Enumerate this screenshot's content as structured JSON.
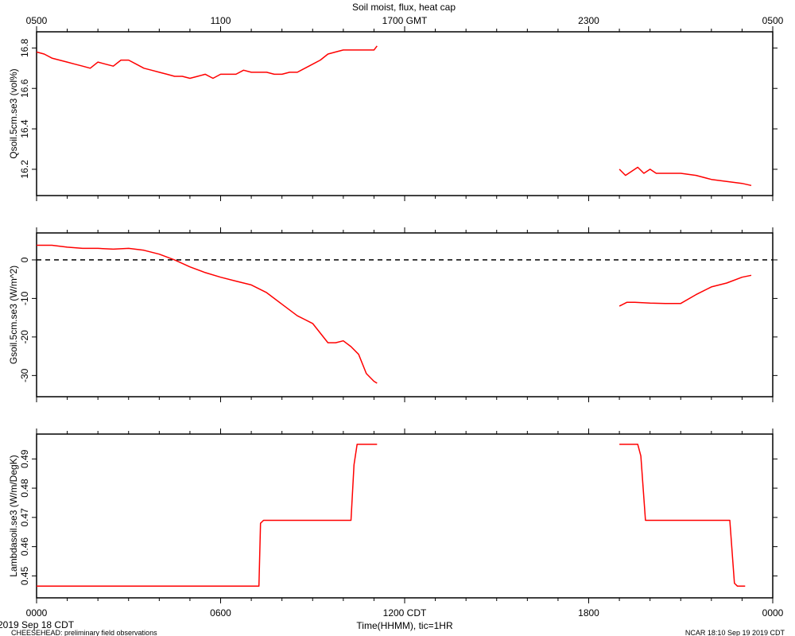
{
  "title": "Soil moist, flux, heat cap",
  "top_axis": {
    "tick_labels": [
      "0500",
      "1100",
      "1700 GMT",
      "2300",
      "0500"
    ],
    "tick_hours": [
      0,
      6,
      12,
      18,
      24
    ]
  },
  "bottom_axis": {
    "tick_labels": [
      "0000",
      "0600",
      "1200 CDT",
      "1800",
      "0000"
    ],
    "tick_hours": [
      0,
      6,
      12,
      18,
      24
    ],
    "label": "Time(HHMM), tic=1HR",
    "minor_tick_step_hours": 1
  },
  "date_label": "2019 Sep 18 CDT",
  "footer_left": "CHEESEHEAD: preliminary field observations",
  "footer_right": "NCAR 18:10 Sep 19 2019 CDT",
  "colors": {
    "series": "#ff0000",
    "axes": "#000000"
  },
  "chart_data": [
    {
      "type": "line",
      "ylabel": "Qsoil.5cm.se3 (vol%)",
      "ylim": [
        16.07,
        16.88
      ],
      "yticks": [
        16.2,
        16.4,
        16.6,
        16.8
      ],
      "ytick_labels": [
        "16.2",
        "16.4",
        "16.6",
        "16.8"
      ],
      "series": [
        {
          "segments": [
            {
              "x": [
                0,
                0.25,
                0.5,
                0.75,
                1.0,
                1.25,
                1.5,
                1.75,
                2.0,
                2.25,
                2.5,
                2.75,
                3.0,
                3.25,
                3.5,
                3.75,
                4.0,
                4.25,
                4.5,
                4.75,
                5.0,
                5.25,
                5.5,
                5.75,
                6.0,
                6.25,
                6.5,
                6.75,
                7.0,
                7.25,
                7.5,
                7.75,
                8.0,
                8.25,
                8.5,
                8.75,
                9.0,
                9.25,
                9.5,
                9.75,
                10.0,
                10.5,
                11.0,
                11.1
              ],
              "y": [
                16.78,
                16.77,
                16.75,
                16.74,
                16.73,
                16.72,
                16.71,
                16.7,
                16.73,
                16.72,
                16.71,
                16.74,
                16.74,
                16.72,
                16.7,
                16.69,
                16.68,
                16.67,
                16.66,
                16.66,
                16.65,
                16.66,
                16.67,
                16.65,
                16.67,
                16.67,
                16.67,
                16.69,
                16.68,
                16.68,
                16.68,
                16.67,
                16.67,
                16.68,
                16.68,
                16.7,
                16.72,
                16.74,
                16.77,
                16.78,
                16.79,
                16.79,
                16.79,
                16.81
              ]
            },
            {
              "x": [
                19.0,
                19.2,
                19.4,
                19.6,
                19.8,
                20.0,
                20.2,
                20.5,
                20.8,
                21.0,
                21.5,
                22.0,
                22.5,
                23.0,
                23.3
              ],
              "y": [
                16.2,
                16.17,
                16.19,
                16.21,
                16.18,
                16.2,
                16.18,
                16.18,
                16.18,
                16.18,
                16.17,
                16.15,
                16.14,
                16.13,
                16.12
              ]
            }
          ]
        }
      ]
    },
    {
      "type": "line",
      "ylabel": "Gsoil.5cm.se3 (W/m^2)",
      "ylim": [
        -35.5,
        7
      ],
      "yticks": [
        -30,
        -20,
        -10,
        0
      ],
      "ytick_labels": [
        "-30",
        "-20",
        "-10",
        "0"
      ],
      "zero_line": 0,
      "series": [
        {
          "segments": [
            {
              "x": [
                0,
                0.5,
                1.0,
                1.5,
                2.0,
                2.5,
                3.0,
                3.5,
                4.0,
                4.5,
                5.0,
                5.5,
                6.0,
                6.5,
                7.0,
                7.5,
                8.0,
                8.5,
                9.0,
                9.5,
                9.75,
                10.0,
                10.25,
                10.5,
                10.75,
                11.0,
                11.1
              ],
              "y": [
                3.8,
                3.8,
                3.3,
                3.0,
                3.0,
                2.8,
                3.0,
                2.5,
                1.5,
                0,
                -1.8,
                -3.3,
                -4.5,
                -5.5,
                -6.5,
                -8.5,
                -11.5,
                -14.5,
                -16.5,
                -21.5,
                -21.5,
                -21,
                -22.5,
                -24.5,
                -29.5,
                -31.5,
                -32
              ]
            },
            {
              "x": [
                19.0,
                19.25,
                19.5,
                20.0,
                20.5,
                21.0,
                21.5,
                22.0,
                22.5,
                23.0,
                23.3
              ],
              "y": [
                -12.0,
                -11.0,
                -11.0,
                -11.2,
                -11.3,
                -11.3,
                -9.0,
                -7.0,
                -6.0,
                -4.5,
                -4.0
              ]
            }
          ]
        }
      ]
    },
    {
      "type": "line",
      "ylabel": "Lambdasoil.se3 (W/m/DegK)",
      "ylim": [
        0.4425,
        0.4985
      ],
      "yticks": [
        0.45,
        0.46,
        0.47,
        0.48,
        0.49
      ],
      "ytick_labels": [
        "0.45",
        "0.46",
        "0.47",
        "0.48",
        "0.49"
      ],
      "series": [
        {
          "segments": [
            {
              "x": [
                0,
                7.25,
                7.3,
                7.4,
                10.25,
                10.35,
                10.45,
                11.1
              ],
              "y": [
                0.4465,
                0.4465,
                0.468,
                0.469,
                0.469,
                0.488,
                0.495,
                0.495
              ]
            },
            {
              "x": [
                19.0,
                19.6,
                19.7,
                19.85,
                22.6,
                22.75,
                22.85,
                23.1
              ],
              "y": [
                0.495,
                0.495,
                0.491,
                0.469,
                0.469,
                0.4475,
                0.4465,
                0.4465
              ]
            }
          ]
        }
      ]
    }
  ]
}
